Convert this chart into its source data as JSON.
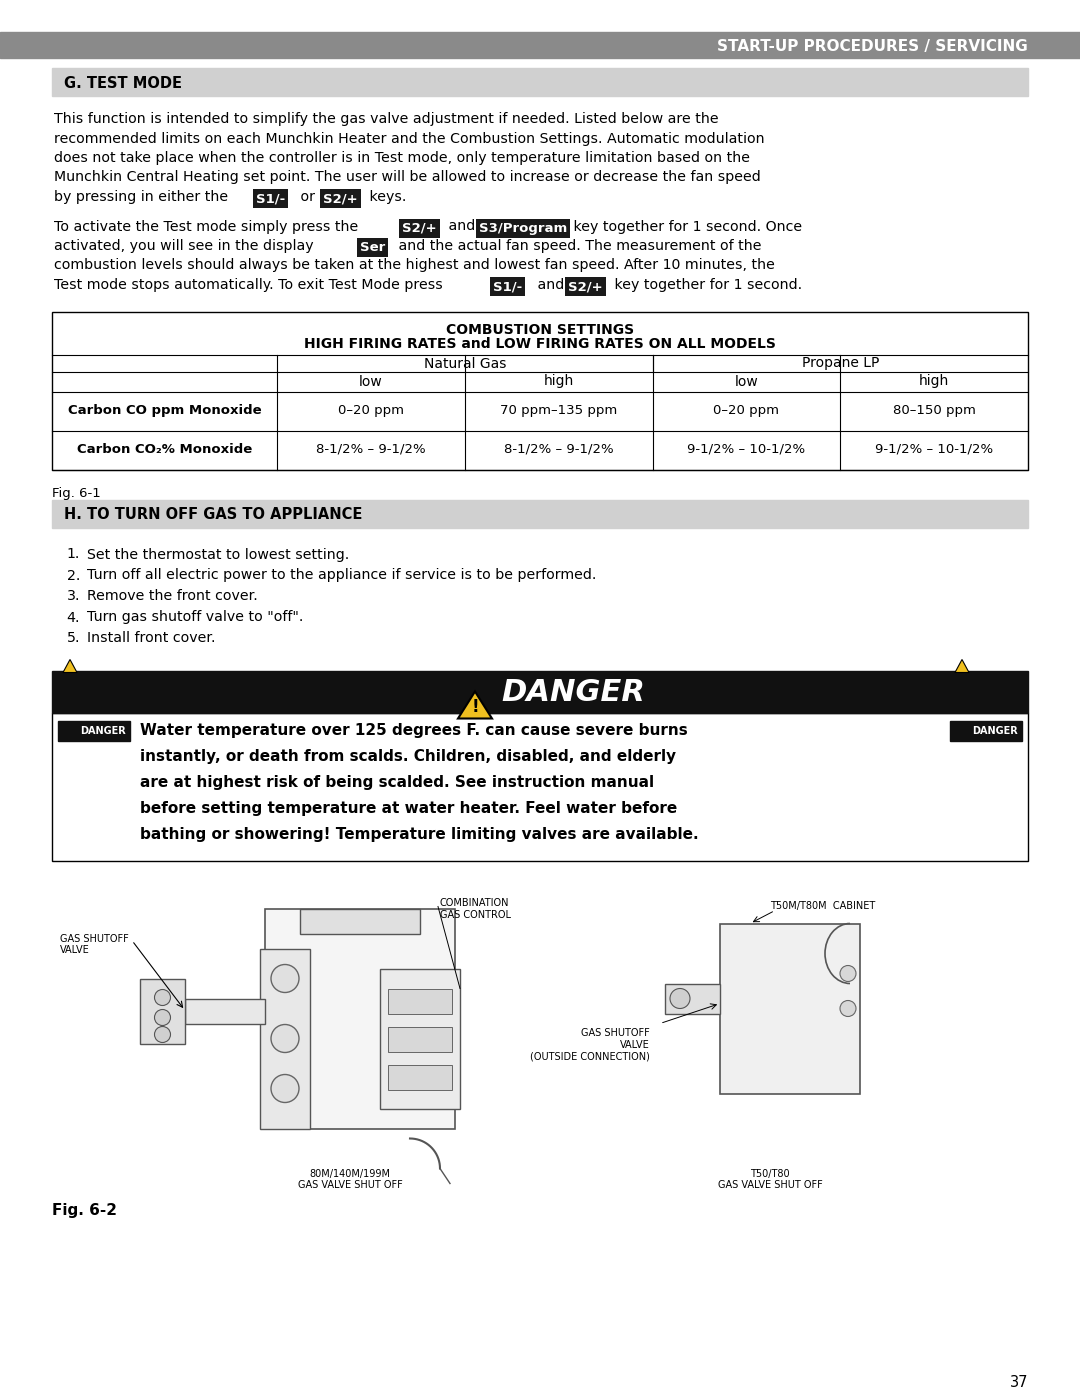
{
  "page_num": "37",
  "header_text": "START-UP PROCEDURES / SERVICING",
  "header_bg": "#8a8a8a",
  "section_g_title": "G. TEST MODE",
  "section_g_bg": "#d0d0d0",
  "para1_lines": [
    "This function is intended to simplify the gas valve adjustment if needed. Listed below are the",
    "recommended limits on each Munchkin Heater and the Combustion Settings. Automatic modulation",
    "does not take place when the controller is in Test mode, only temperature limitation based on the",
    "Munchkin Central Heating set point. The user will be allowed to increase or decrease the fan speed",
    "by pressing in either the"
  ],
  "para1_s1": "S1/-",
  "para1_s2": "S2/+",
  "para2_line1a": "To activate the Test mode simply press the",
  "para2_s2": "S2/+",
  "para2_s3": "S3/Program",
  "para2_line1b": "key together for 1 second. Once",
  "para2_line2a": "activated, you will see in the display",
  "para2_ser": "Ser",
  "para2_line2b": "and the actual fan speed. The measurement of the",
  "para2_line3": "combustion levels should always be taken at the highest and lowest fan speed. After 10 minutes, the",
  "para2_line4a": "Test mode stops automatically. To exit Test Mode press",
  "para2_s1b": "S1/-",
  "para2_s2b": "S2/+",
  "para2_line4b": "key together for 1 second.",
  "table_title1": "COMBUSTION SETTINGS",
  "table_title2": "HIGH FIRING RATES and LOW FIRING RATES ON ALL MODELS",
  "table_col_headers": [
    "Natural Gas",
    "Propane LP"
  ],
  "table_sub_headers": [
    "low",
    "high",
    "low",
    "high"
  ],
  "table_row1_label": "Carbon CO ppm Monoxide",
  "table_row1_data": [
    "0–20 ppm",
    "70 ppm–135 ppm",
    "0–20 ppm",
    "80–150 ppm"
  ],
  "table_row2_label": "Carbon CO₂% Monoxide",
  "table_row2_data": [
    "8-1/2% – 9-1/2%",
    "8-1/2% – 9-1/2%",
    "9-1/2% – 10-1/2%",
    "9-1/2% – 10-1/2%"
  ],
  "fig1_label": "Fig. 6-1",
  "section_h_title": "H. TO TURN OFF GAS TO APPLIANCE",
  "section_h_bg": "#d0d0d0",
  "steps": [
    "Set the thermostat to lowest setting.",
    "Turn off all electric power to the appliance if service is to be performed.",
    "Remove the front cover.",
    "Turn gas shutoff valve to \"off\".",
    "Install front cover."
  ],
  "danger_bar_text": "⚠  DANGER",
  "danger_text_lines": [
    "Water temperature over 125 degrees F. can cause severe burns",
    "instantly, or death from scalds. Children, disabled, and elderly",
    "are at highest risk of being scalded. See instruction manual",
    "before setting temperature at water heater. Feel water before",
    "bathing or showering! Temperature limiting valves are available."
  ],
  "fig2_label": "Fig. 6-2",
  "page_bg": "#ffffff",
  "text_color": "#000000"
}
